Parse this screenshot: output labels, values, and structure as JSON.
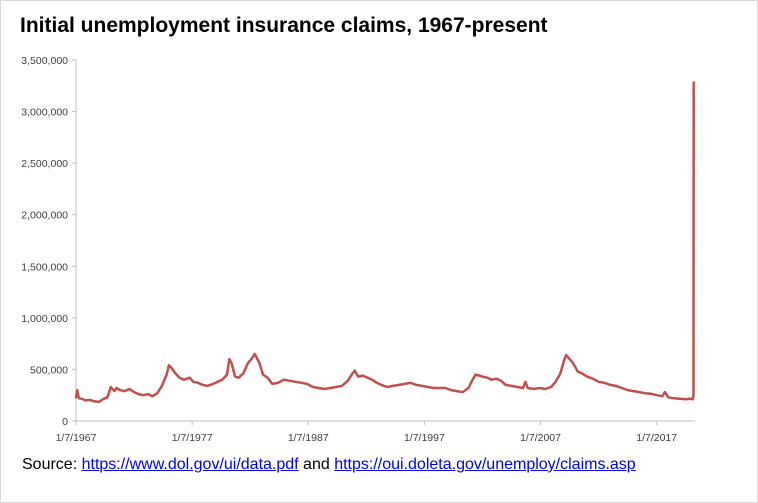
{
  "chart_data": {
    "type": "line",
    "title": "Initial unemployment insurance claims, 1967-present",
    "xlabel": "",
    "ylabel": "",
    "ylim": [
      0,
      3500000
    ],
    "xlim": [
      1967.0,
      2020.3
    ],
    "grid": false,
    "legend": "none",
    "yticks": [
      0,
      500000,
      1000000,
      1500000,
      2000000,
      2500000,
      3000000,
      3500000
    ],
    "ytick_labels": [
      "0",
      "500,000",
      "1,000,000",
      "1,500,000",
      "2,000,000",
      "2,500,000",
      "3,000,000",
      "3,500,000"
    ],
    "xticks": [
      1967,
      1977,
      1987,
      1997,
      2007,
      2017
    ],
    "xtick_labels": [
      "1/7/1967",
      "1/7/1977",
      "1/7/1987",
      "1/7/1997",
      "1/7/2007",
      "1/7/2017"
    ],
    "series": [
      {
        "color": "#c0504d",
        "x": [
          1967.0,
          1967.1,
          1967.25,
          1967.5,
          1967.8,
          1968.2,
          1968.6,
          1969.0,
          1969.3,
          1969.7,
          1970.0,
          1970.3,
          1970.5,
          1970.8,
          1971.2,
          1971.6,
          1972.0,
          1972.4,
          1972.8,
          1973.2,
          1973.6,
          1974.0,
          1974.4,
          1974.8,
          1975.0,
          1975.2,
          1975.5,
          1975.9,
          1976.3,
          1976.8,
          1977.1,
          1977.5,
          1977.9,
          1978.3,
          1978.8,
          1979.2,
          1979.6,
          1980.0,
          1980.2,
          1980.4,
          1980.7,
          1981.0,
          1981.4,
          1981.8,
          1982.1,
          1982.4,
          1982.8,
          1983.1,
          1983.5,
          1983.9,
          1984.4,
          1984.9,
          1985.4,
          1985.9,
          1986.4,
          1986.9,
          1987.4,
          1987.9,
          1988.4,
          1988.9,
          1989.4,
          1989.9,
          1990.4,
          1990.8,
          1991.0,
          1991.3,
          1991.7,
          1992.1,
          1992.5,
          1992.9,
          1993.3,
          1993.8,
          1994.3,
          1994.8,
          1995.3,
          1995.8,
          1996.3,
          1996.8,
          1997.3,
          1997.8,
          1998.3,
          1998.8,
          1999.3,
          1999.8,
          2000.3,
          2000.8,
          2001.1,
          2001.4,
          2001.75,
          2002.0,
          2002.4,
          2002.8,
          2003.2,
          2003.6,
          2004.0,
          2004.5,
          2005.0,
          2005.5,
          2005.7,
          2005.9,
          2006.4,
          2006.9,
          2007.4,
          2007.9,
          2008.3,
          2008.7,
          2009.0,
          2009.2,
          2009.5,
          2009.8,
          2010.2,
          2010.6,
          2011.0,
          2011.5,
          2012.0,
          2012.5,
          2013.0,
          2013.5,
          2014.0,
          2014.5,
          2015.0,
          2015.5,
          2016.0,
          2016.5,
          2017.0,
          2017.5,
          2017.7,
          2018.0,
          2018.5,
          2019.0,
          2019.5,
          2019.9,
          2020.1,
          2020.17,
          2020.19,
          2020.21
        ],
        "values": [
          230000,
          300000,
          220000,
          215000,
          200000,
          205000,
          190000,
          185000,
          210000,
          230000,
          330000,
          290000,
          320000,
          300000,
          290000,
          310000,
          280000,
          260000,
          250000,
          260000,
          240000,
          270000,
          340000,
          450000,
          540000,
          520000,
          470000,
          420000,
          400000,
          420000,
          380000,
          370000,
          350000,
          340000,
          360000,
          380000,
          400000,
          450000,
          600000,
          560000,
          430000,
          420000,
          460000,
          560000,
          600000,
          650000,
          560000,
          450000,
          420000,
          360000,
          370000,
          400000,
          390000,
          380000,
          370000,
          360000,
          330000,
          320000,
          310000,
          320000,
          330000,
          340000,
          390000,
          460000,
          490000,
          430000,
          440000,
          420000,
          400000,
          370000,
          350000,
          330000,
          340000,
          350000,
          360000,
          370000,
          350000,
          340000,
          330000,
          320000,
          320000,
          320000,
          300000,
          290000,
          280000,
          320000,
          390000,
          450000,
          440000,
          430000,
          420000,
          400000,
          410000,
          390000,
          350000,
          340000,
          330000,
          320000,
          380000,
          320000,
          310000,
          320000,
          310000,
          330000,
          380000,
          460000,
          580000,
          640000,
          600000,
          560000,
          480000,
          460000,
          430000,
          410000,
          380000,
          370000,
          350000,
          340000,
          320000,
          300000,
          290000,
          280000,
          270000,
          265000,
          250000,
          240000,
          280000,
          230000,
          220000,
          215000,
          210000,
          215000,
          210000,
          250000,
          3280000,
          3280000
        ]
      }
    ]
  },
  "source": {
    "prefix": "Source: ",
    "link1": "https://www.dol.gov/ui/data.pdf",
    "middle": " and ",
    "link2": "https://oui.doleta.gov/unemploy/claims.asp"
  }
}
